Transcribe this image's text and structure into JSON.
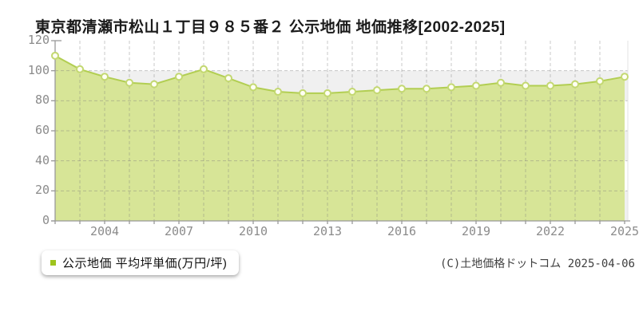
{
  "title": "東京都清瀬市松山１丁目９８５番２ 公示地価 地価推移[2002-2025]",
  "legend": {
    "label": "公示地価 平均坪単価(万円/坪)",
    "marker_color": "#9ec41d"
  },
  "copyright": "(C)土地価格ドットコム 2025-04-06",
  "chart_data": {
    "type": "area",
    "title": "東京都清瀬市松山１丁目９８５番２ 公示地価 地価推移[2002-2025]",
    "x": [
      2002,
      2003,
      2004,
      2005,
      2006,
      2007,
      2008,
      2009,
      2010,
      2011,
      2012,
      2013,
      2014,
      2015,
      2016,
      2017,
      2018,
      2019,
      2020,
      2021,
      2022,
      2023,
      2024,
      2025
    ],
    "series": [
      {
        "name": "公示地価 平均坪単価(万円/坪)",
        "values": [
          110,
          101,
          96,
          92,
          91,
          96,
          101,
          95,
          89,
          86,
          85,
          85,
          86,
          87,
          88,
          88,
          89,
          90,
          92,
          90,
          90,
          91,
          93,
          96
        ]
      }
    ],
    "xlabel": "",
    "ylabel": "万円/坪",
    "ylim": [
      0,
      120
    ],
    "yticks": [
      0,
      20,
      40,
      60,
      80,
      100,
      120
    ],
    "xtick_labels": [
      2004,
      2007,
      2010,
      2013,
      2016,
      2019,
      2022,
      2025
    ],
    "grid": "dashed, vertical every year, horizontal every 20",
    "legend_position": "bottom-left",
    "colors": {
      "area_fill": "#d7e597",
      "line": "#b2ce52",
      "marker_fill": "#fffff4",
      "marker_stroke": "#c3d871",
      "axis": "#999999",
      "tick_text": "#8b8b8b",
      "band_gray": "#f0f0f0"
    }
  }
}
